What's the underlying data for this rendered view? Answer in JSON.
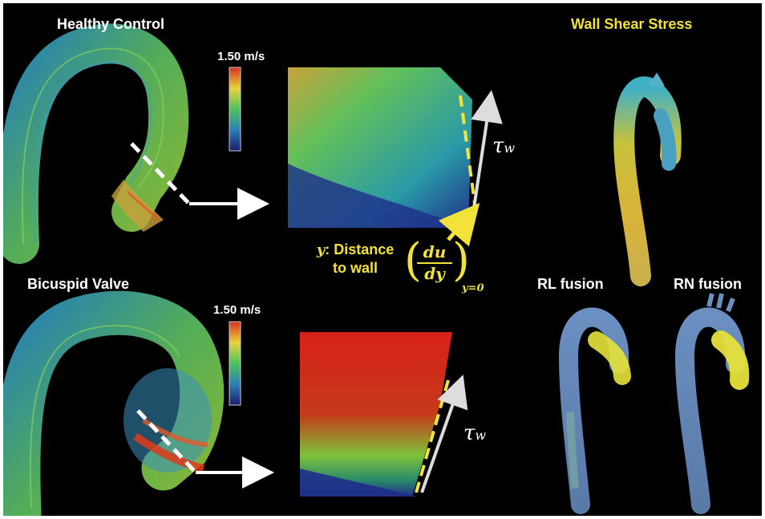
{
  "panels": {
    "healthy": {
      "title": "Healthy Control",
      "colorbar_max": "1.50 m/s"
    },
    "bicuspid": {
      "title": "Bicuspid Valve",
      "colorbar_max": "1.50 m/s"
    },
    "wss": {
      "title": "Wall Shear Stress",
      "rl_label": "RL fusion",
      "rn_label": "RN fusion"
    }
  },
  "annotations": {
    "y_symbol": "y",
    "y_text_line1": ": Distance",
    "y_text_line2": "to wall",
    "tau_top": "τ",
    "tau_bottom": "τ",
    "tau_sub": "w",
    "frac_num": "du",
    "frac_den": "dy",
    "frac_sub": "y=0"
  },
  "colors": {
    "background": "#000000",
    "highlight": "#f2e23a",
    "arrow": "#ffffff"
  }
}
